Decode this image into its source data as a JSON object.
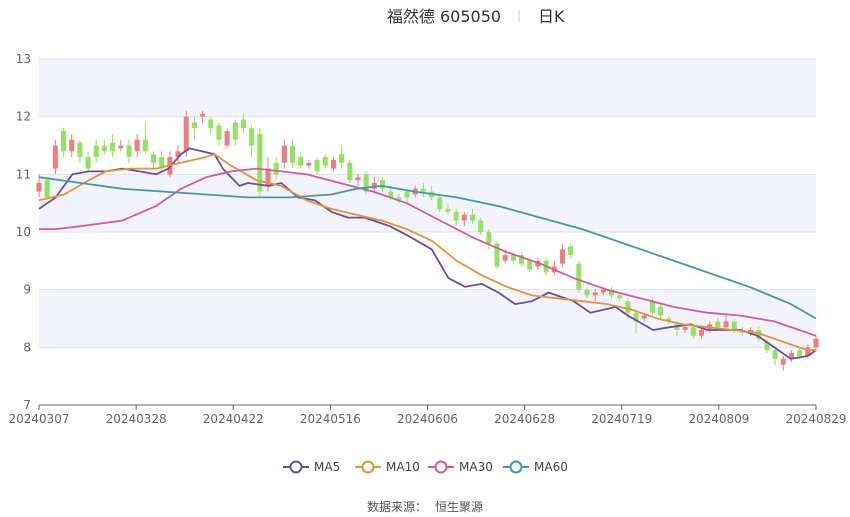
{
  "header": {
    "title": "福然德 605050",
    "period": "日K"
  },
  "source": {
    "label": "数据来源：",
    "name": "恒生聚源"
  },
  "colors": {
    "up": "#f07c82",
    "down": "#93e35f",
    "bandA": "#f3f4fb",
    "bandB": "#ffffff",
    "grid": "#dde0ea"
  },
  "chart_data": {
    "type": "candlestick",
    "ylim": [
      7,
      13
    ],
    "yticks": [
      7,
      8,
      9,
      10,
      11,
      12,
      13
    ],
    "x_start_date": "20240307",
    "x_end_date": "20240829",
    "xticks": [
      "20240307",
      "20240328",
      "20240422",
      "20240516",
      "20240606",
      "20240628",
      "20240719",
      "20240809",
      "20240829"
    ],
    "series": [
      {
        "name": "MA5",
        "color": "#6b4ea0",
        "points": [
          [
            0,
            10.4
          ],
          [
            4,
            10.6
          ],
          [
            8,
            11.0
          ],
          [
            12,
            11.05
          ],
          [
            16,
            11.05
          ],
          [
            20,
            11.1
          ],
          [
            24,
            11.05
          ],
          [
            28,
            11.0
          ],
          [
            31,
            11.1
          ],
          [
            34,
            11.35
          ],
          [
            36,
            11.45
          ],
          [
            39,
            11.4
          ],
          [
            42,
            11.35
          ],
          [
            44,
            11.1
          ],
          [
            48,
            10.8
          ],
          [
            50,
            10.85
          ],
          [
            55,
            10.8
          ],
          [
            58,
            10.85
          ],
          [
            62,
            10.6
          ],
          [
            66,
            10.55
          ],
          [
            70,
            10.35
          ],
          [
            74,
            10.25
          ],
          [
            78,
            10.25
          ],
          [
            84,
            10.1
          ],
          [
            88,
            9.95
          ],
          [
            94,
            9.7
          ],
          [
            98,
            9.2
          ],
          [
            102,
            9.05
          ],
          [
            106,
            9.1
          ],
          [
            110,
            8.95
          ],
          [
            114,
            8.75
          ],
          [
            118,
            8.8
          ],
          [
            122,
            8.95
          ],
          [
            128,
            8.8
          ],
          [
            132,
            8.6
          ],
          [
            138,
            8.7
          ],
          [
            141,
            8.55
          ],
          [
            147,
            8.3
          ],
          [
            151,
            8.35
          ],
          [
            156,
            8.4
          ],
          [
            160,
            8.3
          ],
          [
            164,
            8.3
          ],
          [
            168,
            8.3
          ],
          [
            172,
            8.2
          ],
          [
            176,
            8.0
          ],
          [
            180,
            7.8
          ],
          [
            184,
            7.85
          ],
          [
            186,
            7.95
          ]
        ]
      },
      {
        "name": "MA10",
        "color": "#e6923b",
        "points": [
          [
            0,
            10.55
          ],
          [
            6,
            10.65
          ],
          [
            12,
            10.9
          ],
          [
            16,
            11.05
          ],
          [
            22,
            11.1
          ],
          [
            28,
            11.1
          ],
          [
            34,
            11.2
          ],
          [
            40,
            11.3
          ],
          [
            42,
            11.35
          ],
          [
            46,
            11.15
          ],
          [
            52,
            10.9
          ],
          [
            58,
            10.8
          ],
          [
            64,
            10.55
          ],
          [
            70,
            10.4
          ],
          [
            76,
            10.3
          ],
          [
            82,
            10.2
          ],
          [
            88,
            10.05
          ],
          [
            94,
            9.85
          ],
          [
            100,
            9.5
          ],
          [
            106,
            9.25
          ],
          [
            112,
            9.05
          ],
          [
            118,
            8.9
          ],
          [
            124,
            8.85
          ],
          [
            130,
            8.8
          ],
          [
            136,
            8.75
          ],
          [
            142,
            8.65
          ],
          [
            148,
            8.5
          ],
          [
            154,
            8.4
          ],
          [
            160,
            8.35
          ],
          [
            166,
            8.3
          ],
          [
            172,
            8.25
          ],
          [
            178,
            8.1
          ],
          [
            184,
            7.95
          ],
          [
            186,
            7.95
          ]
        ]
      },
      {
        "name": "MA30",
        "color": "#d55aa3",
        "points": [
          [
            0,
            10.05
          ],
          [
            4,
            10.05
          ],
          [
            10,
            10.1
          ],
          [
            20,
            10.2
          ],
          [
            28,
            10.45
          ],
          [
            34,
            10.75
          ],
          [
            40,
            10.95
          ],
          [
            46,
            11.05
          ],
          [
            52,
            11.1
          ],
          [
            58,
            11.05
          ],
          [
            64,
            11.0
          ],
          [
            72,
            10.85
          ],
          [
            80,
            10.7
          ],
          [
            88,
            10.5
          ],
          [
            96,
            10.2
          ],
          [
            104,
            9.9
          ],
          [
            112,
            9.65
          ],
          [
            120,
            9.45
          ],
          [
            128,
            9.2
          ],
          [
            136,
            9.0
          ],
          [
            144,
            8.85
          ],
          [
            152,
            8.7
          ],
          [
            160,
            8.6
          ],
          [
            168,
            8.55
          ],
          [
            176,
            8.45
          ],
          [
            182,
            8.3
          ],
          [
            186,
            8.2
          ]
        ]
      },
      {
        "name": "MA60",
        "color": "#419ca0",
        "points": [
          [
            0,
            10.95
          ],
          [
            10,
            10.85
          ],
          [
            20,
            10.75
          ],
          [
            30,
            10.7
          ],
          [
            40,
            10.65
          ],
          [
            50,
            10.6
          ],
          [
            60,
            10.6
          ],
          [
            70,
            10.65
          ],
          [
            76,
            10.75
          ],
          [
            82,
            10.8
          ],
          [
            90,
            10.7
          ],
          [
            100,
            10.6
          ],
          [
            110,
            10.45
          ],
          [
            120,
            10.25
          ],
          [
            130,
            10.05
          ],
          [
            140,
            9.8
          ],
          [
            150,
            9.55
          ],
          [
            160,
            9.3
          ],
          [
            170,
            9.05
          ],
          [
            180,
            8.75
          ],
          [
            186,
            8.5
          ]
        ]
      }
    ],
    "candles": [
      [
        0,
        10.7,
        10.85,
        11.0,
        10.6
      ],
      [
        1,
        10.9,
        10.6,
        10.95,
        10.55
      ],
      [
        2,
        11.1,
        11.5,
        11.6,
        11.0
      ],
      [
        3,
        11.75,
        11.4,
        11.8,
        11.3
      ],
      [
        4,
        11.4,
        11.6,
        11.7,
        11.3
      ],
      [
        5,
        11.55,
        11.3,
        11.6,
        11.2
      ],
      [
        6,
        11.3,
        11.1,
        11.4,
        11.05
      ],
      [
        7,
        11.5,
        11.3,
        11.6,
        11.2
      ],
      [
        8,
        11.5,
        11.4,
        11.6,
        11.35
      ],
      [
        9,
        11.55,
        11.4,
        11.7,
        11.3
      ],
      [
        10,
        11.45,
        11.5,
        11.6,
        11.4
      ],
      [
        11,
        11.5,
        11.3,
        11.6,
        11.2
      ],
      [
        12,
        11.4,
        11.6,
        11.7,
        11.3
      ],
      [
        13,
        11.6,
        11.4,
        11.9,
        11.35
      ],
      [
        14,
        11.35,
        11.2,
        11.4,
        11.1
      ],
      [
        15,
        11.3,
        11.1,
        11.4,
        11.05
      ],
      [
        16,
        11.0,
        11.3,
        11.4,
        10.95
      ],
      [
        17,
        11.3,
        11.4,
        11.5,
        11.2
      ],
      [
        18,
        11.4,
        12.0,
        12.1,
        11.3
      ],
      [
        19,
        11.9,
        11.8,
        12.0,
        11.6
      ],
      [
        20,
        12.0,
        12.05,
        12.1,
        11.9
      ],
      [
        21,
        11.95,
        11.8,
        12.0,
        11.7
      ],
      [
        22,
        11.85,
        11.6,
        11.9,
        11.5
      ],
      [
        23,
        11.5,
        11.75,
        11.8,
        11.45
      ],
      [
        24,
        11.9,
        11.6,
        11.95,
        11.5
      ],
      [
        25,
        11.95,
        11.8,
        12.05,
        11.7
      ],
      [
        26,
        11.8,
        11.5,
        11.85,
        11.3
      ],
      [
        27,
        11.7,
        10.7,
        11.8,
        10.6
      ],
      [
        28,
        10.8,
        11.1,
        11.3,
        10.7
      ],
      [
        29,
        11.2,
        11.0,
        11.3,
        10.9
      ],
      [
        30,
        11.2,
        11.5,
        11.6,
        11.1
      ],
      [
        31,
        11.5,
        11.2,
        11.6,
        11.1
      ],
      [
        32,
        11.3,
        11.15,
        11.4,
        11.1
      ],
      [
        33,
        11.15,
        11.2,
        11.25,
        11.1
      ],
      [
        34,
        11.25,
        11.05,
        11.3,
        11.0
      ],
      [
        35,
        11.3,
        11.15,
        11.35,
        11.1
      ],
      [
        36,
        11.1,
        11.25,
        11.3,
        11.05
      ],
      [
        37,
        11.35,
        11.2,
        11.5,
        11.1
      ],
      [
        38,
        11.2,
        10.9,
        11.25,
        10.85
      ],
      [
        39,
        10.9,
        10.95,
        11.0,
        10.8
      ],
      [
        40,
        11.0,
        10.7,
        11.05,
        10.65
      ],
      [
        41,
        10.75,
        10.85,
        10.95,
        10.7
      ],
      [
        42,
        10.9,
        10.75,
        10.95,
        10.7
      ],
      [
        43,
        10.7,
        10.6,
        10.8,
        10.55
      ],
      [
        44,
        10.6,
        10.55,
        10.65,
        10.5
      ],
      [
        45,
        10.7,
        10.6,
        10.75,
        10.5
      ],
      [
        46,
        10.65,
        10.75,
        10.8,
        10.6
      ],
      [
        47,
        10.75,
        10.7,
        10.85,
        10.6
      ],
      [
        48,
        10.7,
        10.6,
        10.8,
        10.55
      ],
      [
        49,
        10.6,
        10.4,
        10.65,
        10.35
      ],
      [
        50,
        10.4,
        10.35,
        10.5,
        10.3
      ],
      [
        51,
        10.35,
        10.2,
        10.4,
        10.1
      ],
      [
        52,
        10.2,
        10.3,
        10.35,
        10.1
      ],
      [
        53,
        10.3,
        10.2,
        10.4,
        10.15
      ],
      [
        54,
        10.2,
        10.0,
        10.25,
        9.95
      ],
      [
        55,
        10.0,
        9.8,
        10.05,
        9.7
      ],
      [
        56,
        9.8,
        9.4,
        9.85,
        9.35
      ],
      [
        57,
        9.5,
        9.6,
        9.7,
        9.45
      ],
      [
        58,
        9.6,
        9.5,
        9.65,
        9.45
      ],
      [
        59,
        9.6,
        9.45,
        9.65,
        9.4
      ],
      [
        60,
        9.5,
        9.35,
        9.55,
        9.3
      ],
      [
        61,
        9.4,
        9.5,
        9.55,
        9.35
      ],
      [
        62,
        9.5,
        9.3,
        9.55,
        9.25
      ],
      [
        63,
        9.3,
        9.4,
        9.5,
        9.25
      ],
      [
        64,
        9.45,
        9.7,
        9.8,
        9.4
      ],
      [
        65,
        9.75,
        9.6,
        9.8,
        9.55
      ],
      [
        66,
        9.45,
        9.0,
        9.5,
        8.95
      ],
      [
        67,
        9.0,
        8.9,
        9.05,
        8.85
      ],
      [
        68,
        8.9,
        8.95,
        9.0,
        8.8
      ],
      [
        69,
        8.95,
        9.0,
        9.05,
        8.9
      ],
      [
        70,
        9.0,
        8.9,
        9.05,
        8.85
      ],
      [
        71,
        8.9,
        8.85,
        8.95,
        8.8
      ],
      [
        72,
        8.8,
        8.6,
        8.85,
        8.5
      ],
      [
        73,
        8.6,
        8.45,
        8.65,
        8.25
      ],
      [
        74,
        8.5,
        8.55,
        8.6,
        8.45
      ],
      [
        75,
        8.8,
        8.6,
        8.85,
        8.55
      ],
      [
        76,
        8.7,
        8.55,
        8.75,
        8.5
      ],
      [
        77,
        8.5,
        8.45,
        8.55,
        8.4
      ],
      [
        78,
        8.4,
        8.3,
        8.45,
        8.2
      ],
      [
        79,
        8.3,
        8.35,
        8.4,
        8.25
      ],
      [
        80,
        8.35,
        8.2,
        8.4,
        8.15
      ],
      [
        81,
        8.2,
        8.3,
        8.35,
        8.15
      ],
      [
        82,
        8.3,
        8.4,
        8.45,
        8.25
      ],
      [
        83,
        8.45,
        8.35,
        8.5,
        8.3
      ],
      [
        84,
        8.35,
        8.45,
        8.55,
        8.3
      ],
      [
        85,
        8.45,
        8.3,
        8.5,
        8.25
      ],
      [
        86,
        8.3,
        8.25,
        8.35,
        8.2
      ],
      [
        87,
        8.25,
        8.3,
        8.35,
        8.2
      ],
      [
        88,
        8.3,
        8.15,
        8.35,
        8.1
      ],
      [
        89,
        8.1,
        7.95,
        8.15,
        7.9
      ],
      [
        90,
        7.95,
        7.8,
        8.0,
        7.7
      ],
      [
        91,
        7.7,
        7.8,
        7.85,
        7.6
      ],
      [
        92,
        7.8,
        7.9,
        7.95,
        7.75
      ],
      [
        93,
        7.95,
        7.85,
        8.0,
        7.8
      ],
      [
        94,
        7.85,
        8.0,
        8.05,
        7.8
      ],
      [
        95,
        8.0,
        8.15,
        8.2,
        7.95
      ]
    ]
  },
  "legend": [
    {
      "label": "MA5",
      "color": "#6b4ea0"
    },
    {
      "label": "MA10",
      "color": "#e6923b"
    },
    {
      "label": "MA30",
      "color": "#d55aa3"
    },
    {
      "label": "MA60",
      "color": "#419ca0"
    }
  ]
}
